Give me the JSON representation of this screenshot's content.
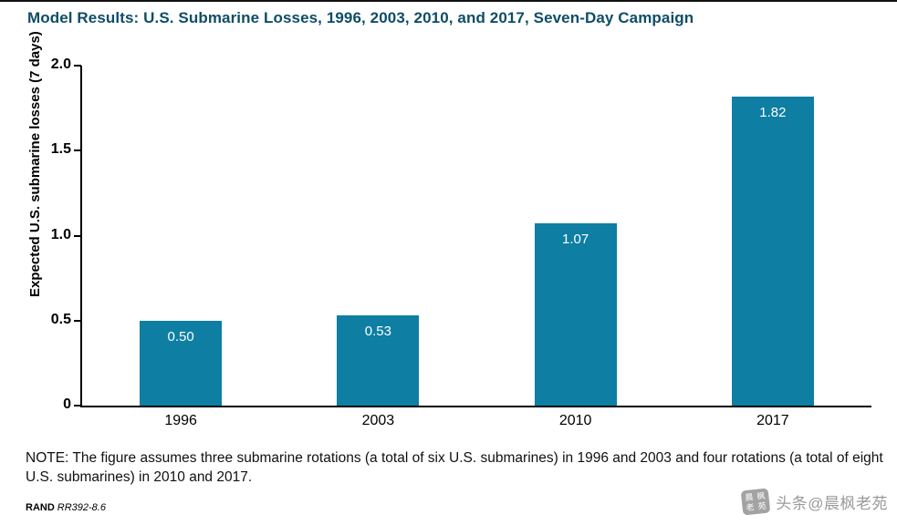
{
  "title": "Model Results: U.S. Submarine Losses, 1996, 2003, 2010, and 2017, Seven-Day Campaign",
  "chart_data": {
    "type": "bar",
    "categories": [
      "1996",
      "2003",
      "2010",
      "2017"
    ],
    "values": [
      0.5,
      0.53,
      1.07,
      1.82
    ],
    "bar_labels": [
      "0.50",
      "0.53",
      "1.07",
      "1.82"
    ],
    "title": "Model Results: U.S. Submarine Losses, 1996, 2003, 2010, and 2017, Seven-Day Campaign",
    "xlabel": "",
    "ylabel": "Expected U.S. submarine losses (7 days)",
    "ylim": [
      0,
      2.0
    ],
    "yticks": [
      0,
      0.5,
      1.0,
      1.5,
      2.0
    ],
    "ytick_labels": [
      "0",
      "0.5",
      "1.0",
      "1.5",
      "2.0"
    ],
    "bar_color": "#0e7ea3",
    "grid": false,
    "legend": "none"
  },
  "note": "NOTE: The figure assumes three submarine rotations (a total of six U.S. submarines) in 1996 and 2003 and four rotations (a total of eight U.S. submarines) in 2010 and 2017.",
  "source": {
    "brand": "RAND",
    "figure_id": "RR392-8.6"
  },
  "watermark": {
    "text": "头条@晨枫老苑",
    "seal_chars": [
      "晨",
      "枫",
      "老",
      "苑"
    ],
    "color": "#9a9a9a"
  },
  "colors": {
    "title": "#0e4d66",
    "bar": "#0e7ea3",
    "axis": "#000000"
  }
}
